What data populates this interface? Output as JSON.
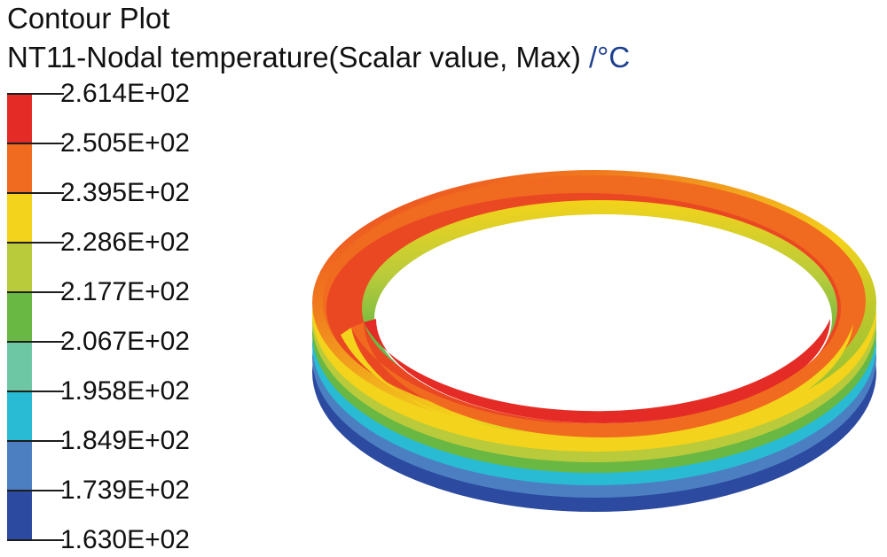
{
  "plot": {
    "title": "Contour Plot",
    "variable": "NT11-Nodal temperature(Scalar value, Max) ",
    "unit": "/°C"
  },
  "legend": {
    "labels": [
      "2.614E+02",
      "2.505E+02",
      "2.395E+02",
      "2.286E+02",
      "2.177E+02",
      "2.067E+02",
      "1.958E+02",
      "1.849E+02",
      "1.739E+02",
      "1.630E+02"
    ],
    "colors": [
      "#e52b25",
      "#f06b1f",
      "#f3d31b",
      "#b9cb3a",
      "#69b843",
      "#6ec7a4",
      "#28bbd3",
      "#4c7fc1",
      "#2b4aa0"
    ]
  }
}
